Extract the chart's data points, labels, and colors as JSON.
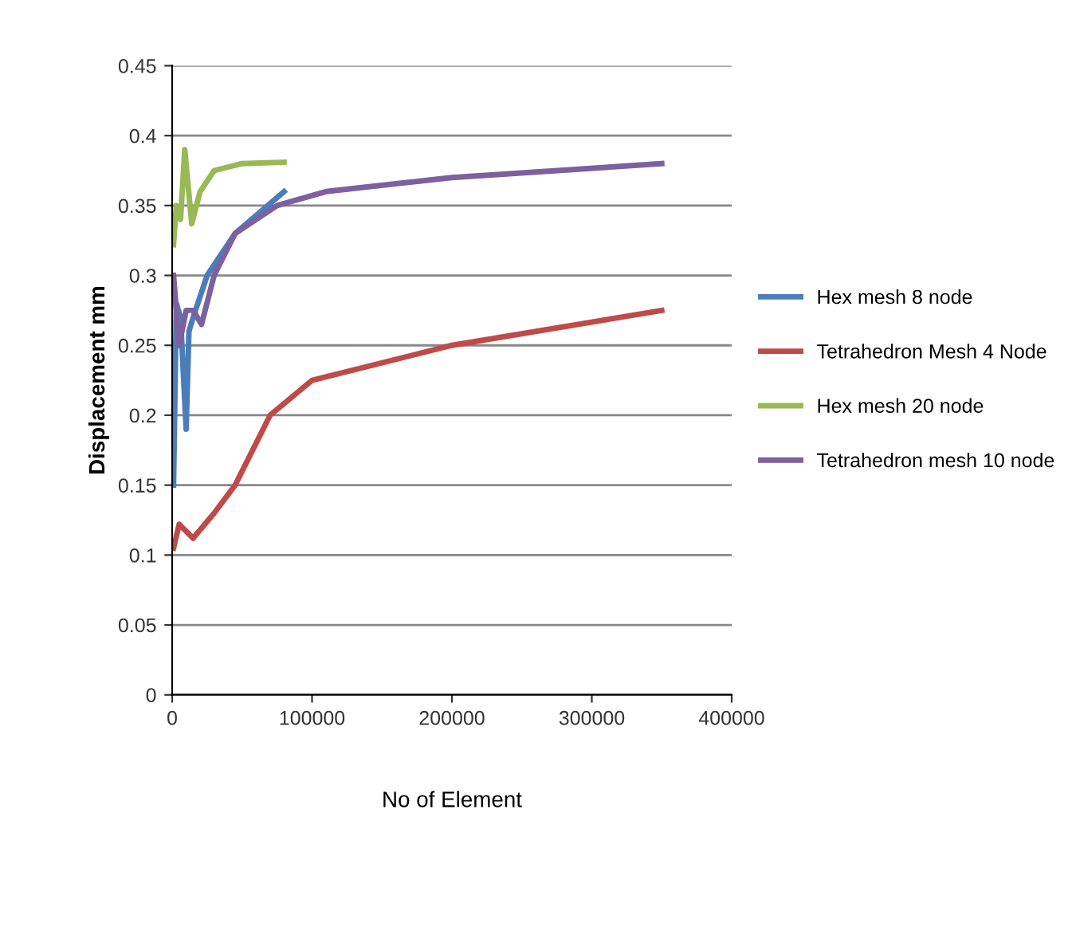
{
  "chart_data": {
    "type": "line",
    "xlabel": "No of Element",
    "ylabel": "Displacement mm",
    "xlim": [
      0,
      400000
    ],
    "xticks": [
      0,
      100000,
      200000,
      300000,
      400000
    ],
    "ylim": [
      0,
      0.45
    ],
    "yticks": [
      0,
      0.05,
      0.1,
      0.15,
      0.2,
      0.25,
      0.3,
      0.35,
      0.4,
      0.45
    ],
    "grid": "y",
    "legend": "right",
    "marker": "none",
    "line_style": "solid",
    "series": [
      {
        "name": "Hex mesh 8 node",
        "color": "#4a7ebb",
        "x": [
          1000,
          3000,
          6000,
          10000,
          12000,
          15000,
          25000,
          45000,
          80000
        ],
        "values": [
          0.15,
          0.28,
          0.27,
          0.19,
          0.26,
          0.27,
          0.3,
          0.33,
          0.36
        ]
      },
      {
        "name": "Tetrahedron Mesh 4 Node",
        "color": "#be4b48",
        "x": [
          1000,
          5000,
          15000,
          30000,
          45000,
          70000,
          100000,
          200000,
          350000
        ],
        "values": [
          0.105,
          0.122,
          0.112,
          0.13,
          0.15,
          0.2,
          0.225,
          0.25,
          0.275
        ]
      },
      {
        "name": "Hex mesh 20 node",
        "color": "#98b954",
        "x": [
          1000,
          3000,
          6000,
          9000,
          14000,
          20000,
          30000,
          50000,
          80000
        ],
        "values": [
          0.322,
          0.35,
          0.34,
          0.39,
          0.337,
          0.36,
          0.375,
          0.38,
          0.381
        ]
      },
      {
        "name": "Tetrahedron mesh 10 node",
        "color": "#7d60a0",
        "x": [
          1000,
          5000,
          10000,
          15000,
          21000,
          30000,
          45000,
          75000,
          110000,
          200000,
          350000
        ],
        "values": [
          0.3,
          0.25,
          0.275,
          0.275,
          0.265,
          0.3,
          0.33,
          0.35,
          0.36,
          0.37,
          0.38
        ]
      }
    ]
  }
}
